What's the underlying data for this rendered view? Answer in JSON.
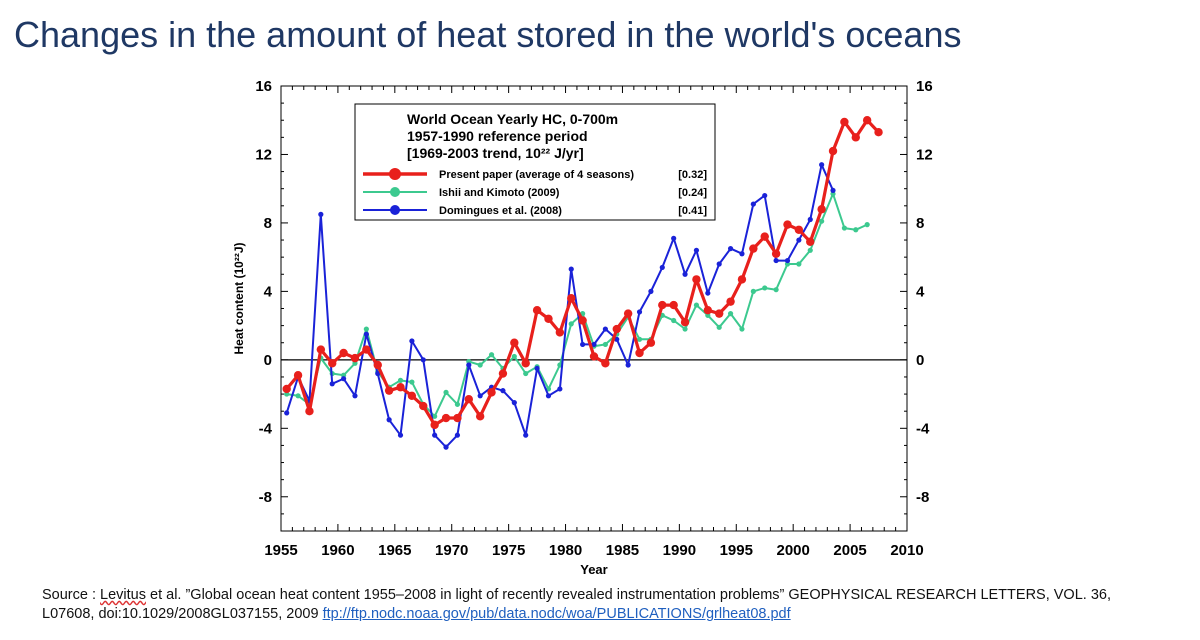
{
  "slide": {
    "title": "Changes in the amount of heat stored in the world's oceans"
  },
  "chart_data": {
    "type": "line",
    "x_label": "Year",
    "y_label": "Heat content (10²²J)",
    "xlim": [
      1955,
      2010
    ],
    "ylim": [
      -10,
      16
    ],
    "x_ticks": [
      1955,
      1960,
      1965,
      1970,
      1975,
      1980,
      1985,
      1990,
      1995,
      2000,
      2005,
      2010
    ],
    "y_ticks": [
      16,
      12,
      8,
      4,
      0,
      -4,
      -8
    ],
    "zero_line": true,
    "legend": {
      "title_lines": [
        "World Ocean Yearly  HC, 0-700m",
        "1957-1990 reference period",
        "[1969-2003 trend, 10²² J/yr]"
      ],
      "placement": "top-center"
    },
    "series": [
      {
        "name": "Present paper (average of  4 seasons)",
        "trend": "[0.32]",
        "color": "#e8201c",
        "x": [
          1955.5,
          1956.5,
          1957.5,
          1958.5,
          1959.5,
          1960.5,
          1961.5,
          1962.5,
          1963.5,
          1964.5,
          1965.5,
          1966.5,
          1967.5,
          1968.5,
          1969.5,
          1970.5,
          1971.5,
          1972.5,
          1973.5,
          1974.5,
          1975.5,
          1976.5,
          1977.5,
          1978.5,
          1979.5,
          1980.5,
          1981.5,
          1982.5,
          1983.5,
          1984.5,
          1985.5,
          1986.5,
          1987.5,
          1988.5,
          1989.5,
          1990.5,
          1991.5,
          1992.5,
          1993.5,
          1994.5,
          1995.5,
          1996.5,
          1997.5,
          1998.5,
          1999.5,
          2000.5,
          2001.5,
          2002.5,
          2003.5,
          2004.5,
          2005.5,
          2006.5,
          2007.5
        ],
        "y": [
          -1.7,
          -0.9,
          -3.0,
          0.6,
          -0.2,
          0.4,
          0.1,
          0.6,
          -0.3,
          -1.8,
          -1.6,
          -2.1,
          -2.7,
          -3.8,
          -3.4,
          -3.4,
          -2.3,
          -3.3,
          -1.9,
          -0.8,
          1.0,
          -0.2,
          2.9,
          2.4,
          1.6,
          3.6,
          2.3,
          0.2,
          -0.2,
          1.8,
          2.7,
          0.4,
          1.0,
          3.2,
          3.2,
          2.2,
          4.7,
          2.9,
          2.7,
          3.4,
          4.7,
          6.5,
          7.2,
          6.2,
          7.9,
          7.6,
          6.9,
          8.8,
          12.2,
          13.9,
          13.0,
          14.0,
          13.3
        ]
      },
      {
        "name": "Ishii and Kimoto (2009)",
        "trend": "[0.24]",
        "color": "#3cc98f",
        "x": [
          1955.5,
          1956.5,
          1957.5,
          1958.5,
          1959.5,
          1960.5,
          1961.5,
          1962.5,
          1963.5,
          1964.5,
          1965.5,
          1966.5,
          1967.5,
          1968.5,
          1969.5,
          1970.5,
          1971.5,
          1972.5,
          1973.5,
          1974.5,
          1975.5,
          1976.5,
          1977.5,
          1978.5,
          1979.5,
          1980.5,
          1981.5,
          1982.5,
          1983.5,
          1984.5,
          1985.5,
          1986.5,
          1987.5,
          1988.5,
          1989.5,
          1990.5,
          1991.5,
          1992.5,
          1993.5,
          1994.5,
          1995.5,
          1996.5,
          1997.5,
          1998.5,
          1999.5,
          2000.5,
          2001.5,
          2002.5,
          2003.5,
          2004.5,
          2005.5,
          2006.5
        ],
        "y": [
          -2.0,
          -2.1,
          -2.6,
          0.1,
          -0.8,
          -0.9,
          -0.2,
          1.8,
          -0.7,
          -1.6,
          -1.2,
          -1.3,
          -2.6,
          -3.3,
          -1.9,
          -2.6,
          -0.1,
          -0.3,
          0.3,
          -0.5,
          0.2,
          -0.8,
          -0.4,
          -1.7,
          -0.3,
          2.1,
          2.7,
          0.8,
          0.9,
          1.5,
          2.5,
          1.2,
          1.2,
          2.6,
          2.3,
          1.8,
          3.2,
          2.6,
          1.9,
          2.7,
          1.8,
          4.0,
          4.2,
          4.1,
          5.6,
          5.6,
          6.4,
          8.1,
          9.7,
          7.7,
          7.6,
          7.9
        ]
      },
      {
        "name": "Domingues et al. (2008)",
        "trend": "[0.41]",
        "color": "#1a22d8",
        "x": [
          1955.5,
          1956.5,
          1957.5,
          1958.5,
          1959.5,
          1960.5,
          1961.5,
          1962.5,
          1963.5,
          1964.5,
          1965.5,
          1966.5,
          1967.5,
          1968.5,
          1969.5,
          1970.5,
          1971.5,
          1972.5,
          1973.5,
          1974.5,
          1975.5,
          1976.5,
          1977.5,
          1978.5,
          1979.5,
          1980.5,
          1981.5,
          1982.5,
          1983.5,
          1984.5,
          1985.5,
          1986.5,
          1987.5,
          1988.5,
          1989.5,
          1990.5,
          1991.5,
          1992.5,
          1993.5,
          1994.5,
          1995.5,
          1996.5,
          1997.5,
          1998.5,
          1999.5,
          2000.5,
          2001.5,
          2002.5,
          2003.5
        ],
        "y": [
          -3.1,
          -1.0,
          -2.4,
          8.5,
          -1.4,
          -1.1,
          -2.1,
          1.5,
          -0.8,
          -3.5,
          -4.4,
          1.1,
          0.0,
          -4.4,
          -5.1,
          -4.4,
          -0.3,
          -2.1,
          -1.6,
          -1.8,
          -2.5,
          -4.4,
          -0.5,
          -2.1,
          -1.7,
          5.3,
          0.9,
          0.9,
          1.8,
          1.2,
          -0.3,
          2.8,
          4.0,
          5.4,
          7.1,
          5.0,
          6.4,
          3.9,
          5.6,
          6.5,
          6.2,
          9.1,
          9.6,
          5.8,
          5.8,
          7.0,
          8.2,
          11.4,
          9.9
        ]
      }
    ]
  },
  "footer": {
    "prefix": "Source : ",
    "author": "Levitus",
    "citation": " et al. ”Global ocean heat content 1955–2008 in light of recently revealed instrumentation problems” GEOPHYSICAL RESEARCH LETTERS, VOL. 36, L07608, doi:10.1029/2008GL037155, 2009 ",
    "link": "ftp://ftp.nodc.noaa.gov/pub/data.nodc/woa/PUBLICATIONS/grlheat08.pdf"
  }
}
